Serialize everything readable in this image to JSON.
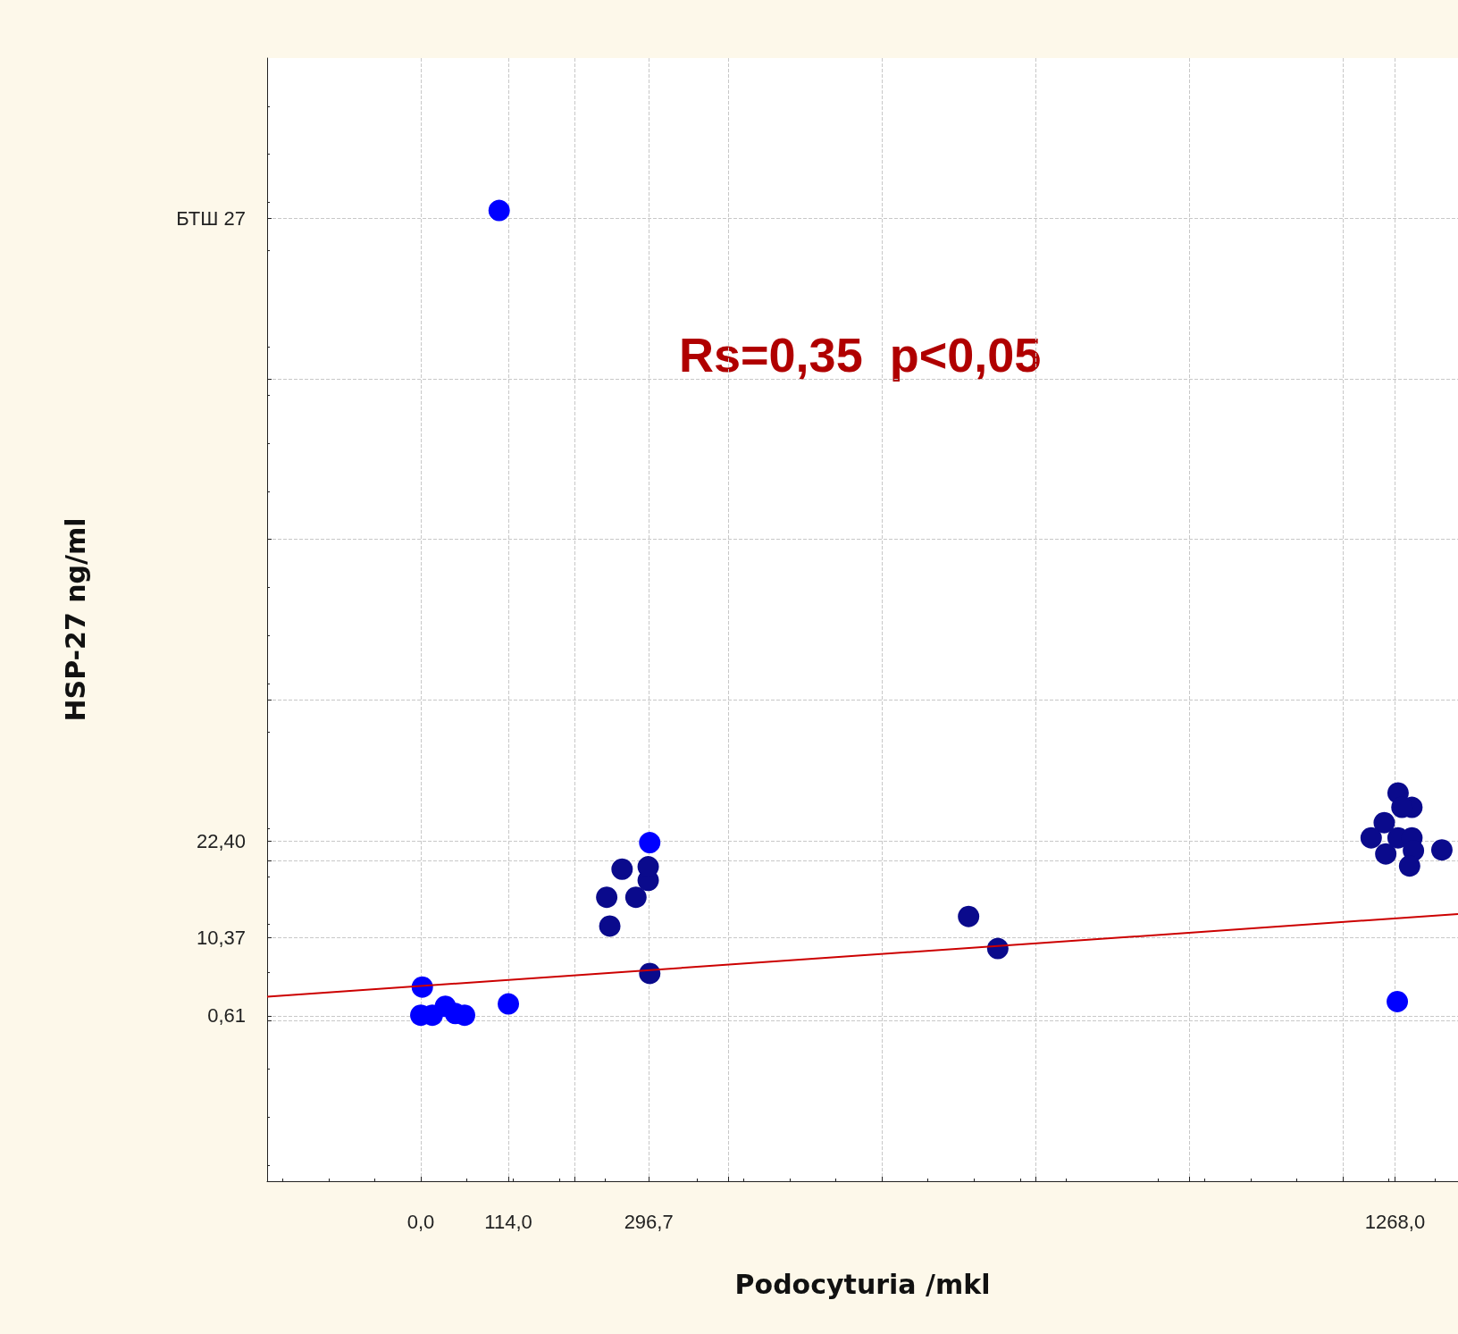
{
  "chart_data": {
    "type": "scatter",
    "xlabel": "Podocyturia /mkl",
    "ylabel": "HSP-27 ng/ml",
    "annotations": [
      "Rs=0,35  p<0,05"
    ],
    "xlim": [
      -200,
      1350
    ],
    "ylim": [
      -20,
      120
    ],
    "xticks": [
      {
        "value": 0,
        "label": "0,0"
      },
      {
        "value": 114,
        "label": "114,0"
      },
      {
        "value": 200,
        "label": null
      },
      {
        "value": 296.7,
        "label": "296,7"
      },
      {
        "value": 400,
        "label": null
      },
      {
        "value": 600,
        "label": null
      },
      {
        "value": 800,
        "label": null
      },
      {
        "value": 1000,
        "label": null
      },
      {
        "value": 1200,
        "label": null
      },
      {
        "value": 1268,
        "label": "1268,0"
      }
    ],
    "yticks": [
      {
        "value": 0,
        "label": null
      },
      {
        "value": 0.61,
        "label": "0,61"
      },
      {
        "value": 10.37,
        "label": "10,37"
      },
      {
        "value": 20,
        "label": null
      },
      {
        "value": 22.4,
        "label": "22,40"
      },
      {
        "value": 40,
        "label": null
      },
      {
        "value": 60,
        "label": null
      },
      {
        "value": 80,
        "label": null
      },
      {
        "value": 100,
        "label": "БТШ 27"
      }
    ],
    "grid": true,
    "marker": "circle",
    "series": [
      {
        "color": "#0000ff",
        "x": [
          102,
          2,
          0,
          32,
          45,
          57,
          15,
          114,
          298,
          1271
        ],
        "values": [
          101,
          4.2,
          0.7,
          1.8,
          0.9,
          0.7,
          0.7,
          2.1,
          22.2,
          2.4
        ]
      },
      {
        "color": "#0a0a8c",
        "x": [
          242,
          246,
          262,
          280,
          296,
          296,
          298,
          713,
          751,
          1272,
          1290,
          1277,
          1254,
          1237,
          1256,
          1272,
          1290,
          1292,
          1287,
          1329
        ],
        "values": [
          15.4,
          11.8,
          18.9,
          15.4,
          17.5,
          19.2,
          5.9,
          13,
          9,
          28.4,
          26.6,
          26.6,
          24.7,
          22.8,
          20.8,
          22.8,
          22.8,
          21.2,
          19.3,
          21.3
        ]
      },
      {
        "type": "line",
        "marker": "none",
        "color": "#cc0000",
        "x": [
          -200,
          1350
        ],
        "values": [
          3.0,
          13.3
        ]
      }
    ]
  }
}
